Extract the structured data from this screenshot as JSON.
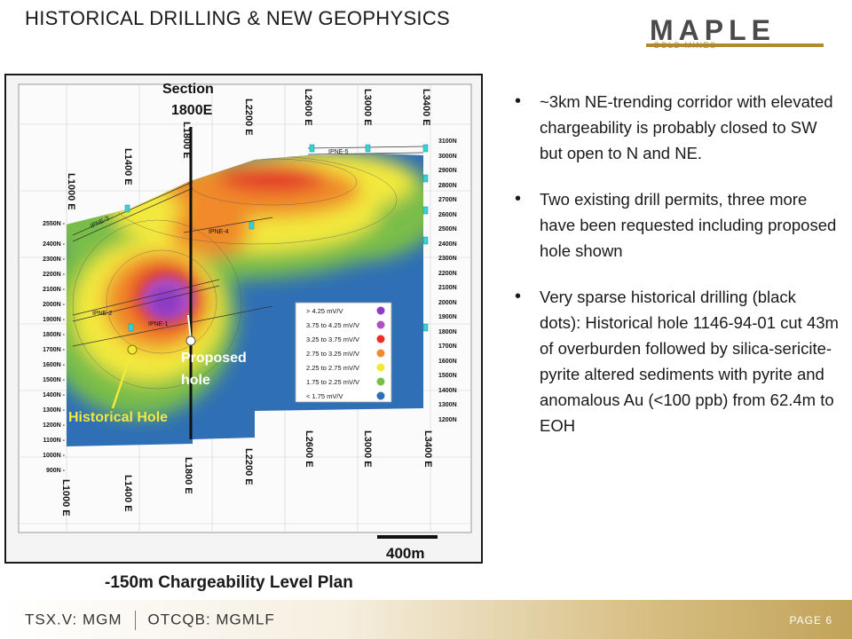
{
  "slide": {
    "title": "HISTORICAL DRILLING & NEW GEOPHYSICS",
    "logo_main": "MAPLE",
    "logo_sub": "GOLD MINES",
    "caption": "-150m Chargeability Level Plan",
    "footer_tsx": "TSX.V: MGM",
    "footer_otc": "OTCQB: MGMLF",
    "page": "PAGE 6"
  },
  "map": {
    "section_label_1": "Section",
    "section_label_2": "1800E",
    "proposed_1": "Proposed",
    "proposed_2": "hole",
    "historical": "Historical  Hole",
    "scale": "400m",
    "lines_top": [
      "L1000 E",
      "L1400 E",
      "L1800 E",
      "L2200 E",
      "L2600 E",
      "L3000 E",
      "L3400 E"
    ],
    "lines_bottom": [
      "L1000 E",
      "L1400 E",
      "L1800 E",
      "L2200 E",
      "L2600 E",
      "L3000 E",
      "L3400 E"
    ],
    "northings_right": [
      "3100N",
      "3000N",
      "2900N",
      "2800N",
      "2700N",
      "2600N",
      "2500N",
      "2400N",
      "2300N",
      "2200N",
      "2100N",
      "2000N",
      "1900N",
      "1800N",
      "1700N",
      "1600N",
      "1500N",
      "1400N",
      "1300N",
      "1200N"
    ],
    "northings_left": [
      "2550N -",
      "2400N -",
      "2300N -",
      "2200N -",
      "2100N -",
      "2000N -",
      "1900N -",
      "1800N -",
      "1700N -",
      "1600N -",
      "1500N -",
      "1400N -",
      "1300N -",
      "1200N -",
      "1100N -",
      "1000N -",
      "900N -"
    ],
    "anomalies": [
      "IPNE-1",
      "IPNE-2",
      "IPNE-3",
      "IPNE-4",
      "IPNE-5"
    ],
    "legend": [
      {
        "label": "> 4.25 mV/V",
        "color": "#8e3bc4"
      },
      {
        "label": "3.75 to 4.25 mV/V",
        "color": "#b04fc8"
      },
      {
        "label": "3.25 to 3.75 mV/V",
        "color": "#e3312a"
      },
      {
        "label": "2.75 to 3.25 mV/V",
        "color": "#f08a2c"
      },
      {
        "label": "2.25 to 2.75 mV/V",
        "color": "#f3e93c"
      },
      {
        "label": "1.75 to 2.25 mV/V",
        "color": "#79bd4a"
      },
      {
        "label": "< 1.75 mV/V",
        "color": "#2f6fb5"
      }
    ]
  },
  "bullets": [
    "~3km NE-trending  corridor with elevated chargeability  is probably closed to SW but open to N and NE.",
    "Two existing drill permits, three more have been requested including proposed  hole shown",
    "Very sparse historical drilling (black dots): Historical hole 1146-94-01 cut 43m of overburden followed by silica-sericite-pyrite altered sediments with pyrite and anomalous Au (<100 ppb) from 62.4m to EOH"
  ]
}
